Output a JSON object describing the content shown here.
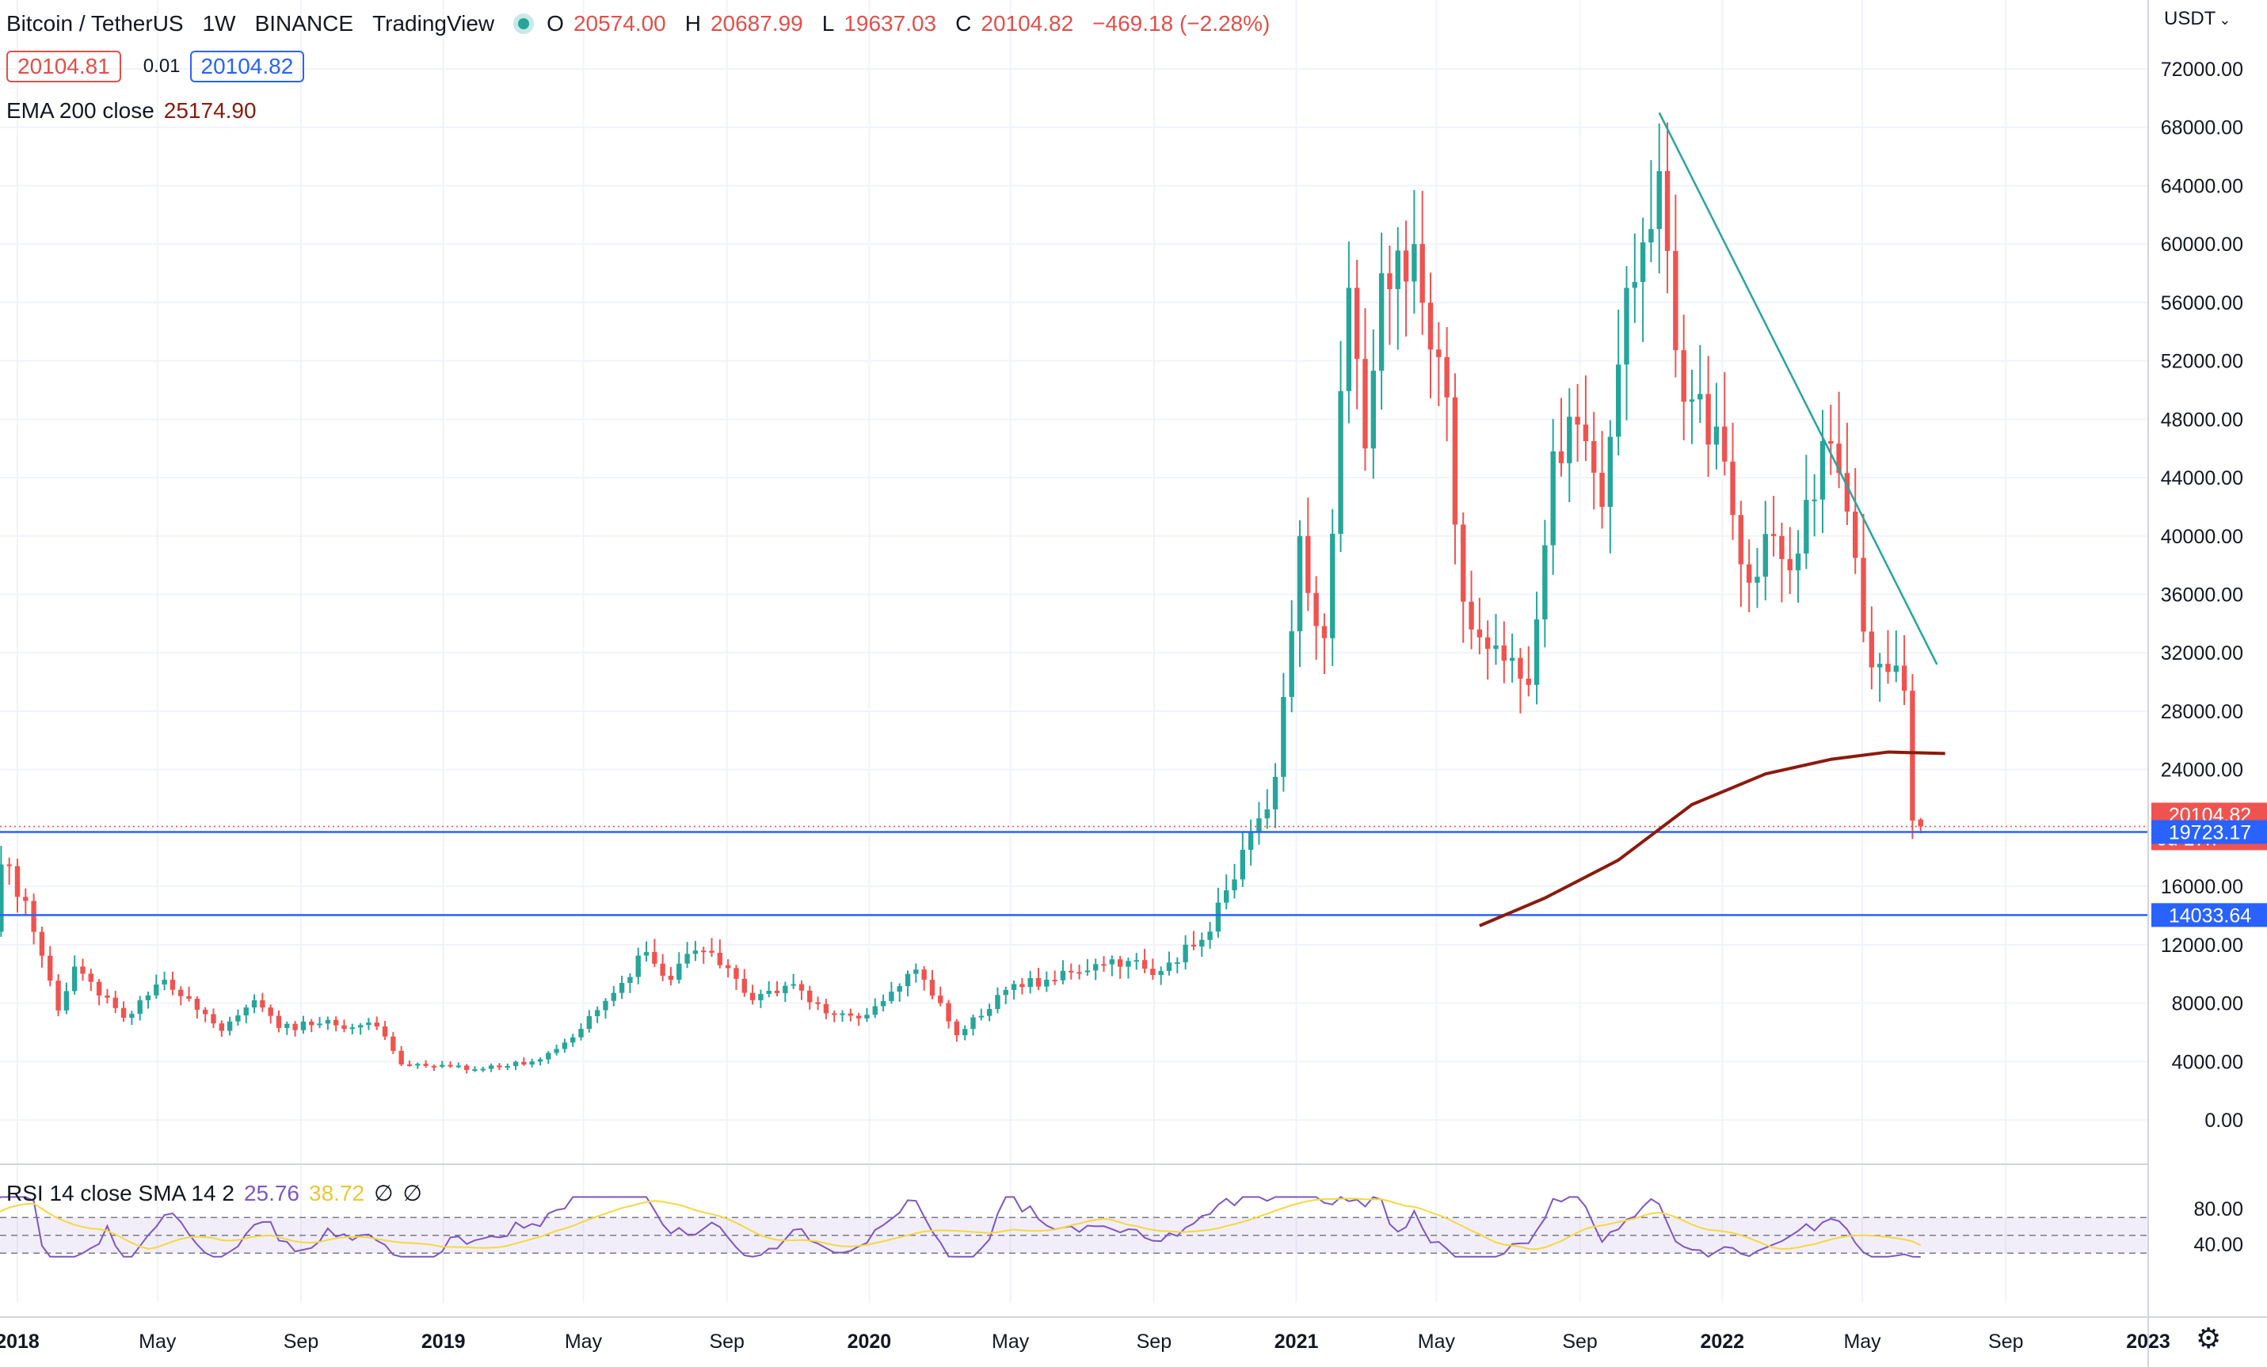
{
  "header": {
    "symbol": "Bitcoin / TetherUS",
    "interval": "1W",
    "exchange": "BINANCE",
    "source": "TradingView",
    "o_label": "O",
    "o_value": "20574.00",
    "h_label": "H",
    "h_value": "20687.99",
    "l_label": "L",
    "l_value": "19637.03",
    "c_label": "C",
    "c_value": "20104.82",
    "change": "−469.18 (−2.28%)",
    "bid": "20104.81",
    "spread": "0.01",
    "ask": "20104.82",
    "currency": "USDT"
  },
  "ema_legend": {
    "label": "EMA 200 close",
    "value": "25174.90"
  },
  "rsi_legend": {
    "label": "RSI 14 close SMA 14 2",
    "rsi_value": "25.76",
    "sma_value": "38.72",
    "na1": "∅",
    "na2": "∅"
  },
  "price_tags": {
    "last": "20104.82",
    "countdown": "6d 17h",
    "level1": "19723.17",
    "level2": "14033.64"
  },
  "colors": {
    "up": "#26a69a",
    "down": "#ef5350",
    "ema": "#8b1a0e",
    "trend": "#26a69a",
    "hline": "#2962ff",
    "rsi": "#7e57c2",
    "rsi_sma": "#f5d742"
  },
  "chart_data": {
    "type": "candlestick",
    "x_start": "2017-12-04",
    "x_step_days": 7,
    "price_ylim": [
      0,
      72000
    ],
    "price_ticks": [
      "0.00",
      "4000.00",
      "8000.00",
      "12000.00",
      "16000.00",
      "20000.00",
      "24000.00",
      "28000.00",
      "32000.00",
      "36000.00",
      "40000.00",
      "44000.00",
      "48000.00",
      "52000.00",
      "56000.00",
      "60000.00",
      "64000.00",
      "68000.00",
      "72000.00"
    ],
    "x_ticks": [
      {
        "date": "2018-01-01",
        "label": "2018",
        "bold": true
      },
      {
        "date": "2018-05-01",
        "label": "May",
        "bold": false
      },
      {
        "date": "2018-09-01",
        "label": "Sep",
        "bold": false
      },
      {
        "date": "2019-01-01",
        "label": "2019",
        "bold": true
      },
      {
        "date": "2019-05-01",
        "label": "May",
        "bold": false
      },
      {
        "date": "2019-09-01",
        "label": "Sep",
        "bold": false
      },
      {
        "date": "2020-01-01",
        "label": "2020",
        "bold": true
      },
      {
        "date": "2020-05-01",
        "label": "May",
        "bold": false
      },
      {
        "date": "2020-09-01",
        "label": "Sep",
        "bold": false
      },
      {
        "date": "2021-01-01",
        "label": "2021",
        "bold": true
      },
      {
        "date": "2021-05-01",
        "label": "May",
        "bold": false
      },
      {
        "date": "2021-09-01",
        "label": "Sep",
        "bold": false
      },
      {
        "date": "2022-01-01",
        "label": "2022",
        "bold": true
      },
      {
        "date": "2022-05-01",
        "label": "May",
        "bold": false
      },
      {
        "date": "2022-09-01",
        "label": "Sep",
        "bold": false
      },
      {
        "date": "2023-01-01",
        "label": "2023",
        "bold": true
      }
    ],
    "anchors": [
      [
        "2017-12-04",
        9000
      ],
      [
        "2017-12-18",
        17500
      ],
      [
        "2018-01-08",
        15000
      ],
      [
        "2018-02-05",
        7500
      ],
      [
        "2018-02-19",
        10500
      ],
      [
        "2018-04-02",
        7000
      ],
      [
        "2018-05-07",
        9600
      ],
      [
        "2018-06-25",
        6100
      ],
      [
        "2018-07-23",
        8200
      ],
      [
        "2018-08-13",
        6300
      ],
      [
        "2018-09-17",
        6600
      ],
      [
        "2018-11-05",
        6400
      ],
      [
        "2018-11-26",
        3800
      ],
      [
        "2018-12-17",
        3700
      ],
      [
        "2019-02-04",
        3500
      ],
      [
        "2019-03-18",
        4000
      ],
      [
        "2019-04-15",
        5300
      ],
      [
        "2019-05-27",
        8700
      ],
      [
        "2019-06-24",
        11500
      ],
      [
        "2019-07-15",
        9600
      ],
      [
        "2019-08-05",
        11600
      ],
      [
        "2019-09-02",
        10400
      ],
      [
        "2019-09-23",
        8200
      ],
      [
        "2019-10-28",
        9300
      ],
      [
        "2019-11-25",
        7300
      ],
      [
        "2019-12-30",
        7200
      ],
      [
        "2020-02-10",
        10300
      ],
      [
        "2020-03-02",
        8000
      ],
      [
        "2020-03-16",
        5800
      ],
      [
        "2020-04-27",
        8900
      ],
      [
        "2020-06-01",
        9600
      ],
      [
        "2020-07-27",
        11000
      ],
      [
        "2020-09-07",
        10200
      ],
      [
        "2020-10-19",
        12900
      ],
      [
        "2020-11-16",
        18500
      ],
      [
        "2020-12-14",
        23500
      ],
      [
        "2021-01-04",
        40000
      ],
      [
        "2021-01-25",
        33000
      ],
      [
        "2021-02-15",
        57000
      ],
      [
        "2021-03-01",
        46000
      ],
      [
        "2021-03-15",
        58000
      ],
      [
        "2021-04-12",
        60000
      ],
      [
        "2021-05-10",
        49500
      ],
      [
        "2021-05-24",
        35500
      ],
      [
        "2021-06-21",
        32500
      ],
      [
        "2021-07-19",
        29800
      ],
      [
        "2021-08-09",
        45800
      ],
      [
        "2021-09-06",
        46500
      ],
      [
        "2021-09-20",
        42000
      ],
      [
        "2021-10-11",
        57000
      ],
      [
        "2021-11-08",
        65000
      ],
      [
        "2021-11-29",
        49200
      ],
      [
        "2021-12-27",
        47500
      ],
      [
        "2022-01-24",
        36800
      ],
      [
        "2022-02-14",
        40000
      ],
      [
        "2022-03-07",
        38800
      ],
      [
        "2022-03-28",
        46500
      ],
      [
        "2022-04-25",
        38500
      ],
      [
        "2022-05-09",
        31000
      ],
      [
        "2022-06-06",
        29400
      ],
      [
        "2022-06-13",
        20500
      ],
      [
        "2022-06-20",
        20100
      ]
    ],
    "last_candle": {
      "o": 20574.0,
      "h": 20687.99,
      "l": 19637.03,
      "c": 20104.82
    },
    "ema200": [
      [
        "2021-06-07",
        13300
      ],
      [
        "2021-08-02",
        15200
      ],
      [
        "2021-10-04",
        17800
      ],
      [
        "2021-12-06",
        21600
      ],
      [
        "2022-02-07",
        23700
      ],
      [
        "2022-04-04",
        24700
      ],
      [
        "2022-05-23",
        25200
      ],
      [
        "2022-07-11",
        25100
      ]
    ],
    "trendline": [
      [
        "2021-11-08",
        69000
      ],
      [
        "2022-07-04",
        31200
      ]
    ],
    "hlines": [
      19723.17,
      14033.64
    ],
    "last_price": 20104.82,
    "rsi_ylim": [
      20,
      100
    ],
    "rsi_ticks": [
      "40.00",
      "80.00"
    ],
    "rsi_band": [
      30,
      70
    ],
    "rsi_mid": 50
  }
}
